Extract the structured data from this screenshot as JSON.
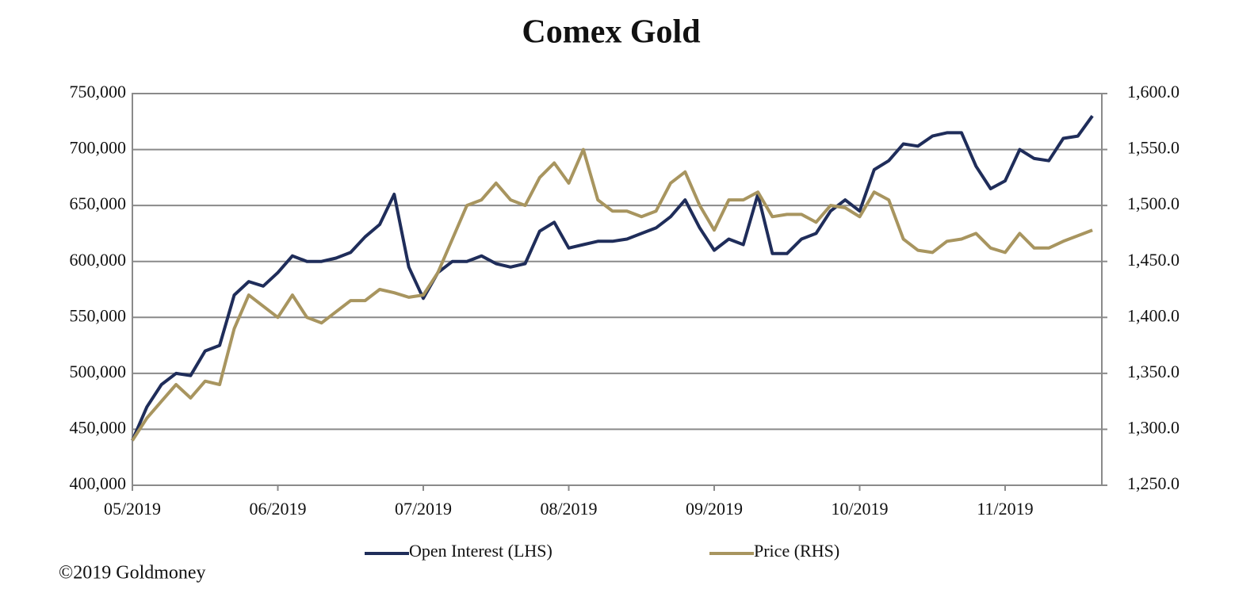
{
  "chart_data": {
    "type": "line",
    "title": "Comex Gold",
    "annotations": [
      "©2019 Goldmoney"
    ],
    "categories": [
      "05/2019",
      null,
      null,
      null,
      null,
      null,
      null,
      null,
      null,
      null,
      "06/2019",
      null,
      null,
      null,
      null,
      null,
      null,
      null,
      null,
      null,
      "07/2019",
      null,
      null,
      null,
      null,
      null,
      null,
      null,
      null,
      null,
      "08/2019",
      null,
      null,
      null,
      null,
      null,
      null,
      null,
      null,
      null,
      "09/2019",
      null,
      null,
      null,
      null,
      null,
      null,
      null,
      null,
      null,
      "10/2019",
      null,
      null,
      null,
      null,
      null,
      null,
      null,
      null,
      null,
      "11/2019",
      null,
      null,
      null,
      null,
      null,
      null
    ],
    "series": [
      {
        "name": "Open Interest (LHS)",
        "color": "#1f2d5a",
        "axis": "y",
        "values": [
          440000,
          470000,
          490000,
          500000,
          498000,
          520000,
          525000,
          570000,
          582000,
          578000,
          590000,
          605000,
          600000,
          600000,
          603000,
          608000,
          622000,
          633000,
          660000,
          595000,
          567000,
          590000,
          600000,
          600000,
          605000,
          598000,
          595000,
          598000,
          627000,
          635000,
          612000,
          615000,
          618000,
          618000,
          620000,
          625000,
          630000,
          640000,
          655000,
          630000,
          610000,
          620000,
          615000,
          660000,
          607000,
          607000,
          620000,
          625000,
          645000,
          655000,
          645000,
          682000,
          690000,
          705000,
          703000,
          712000,
          715000,
          715000,
          685000,
          665000,
          672000,
          700000,
          692000,
          690000,
          710000,
          712000,
          730000
        ]
      },
      {
        "name": "Price (RHS)",
        "color": "#a8955f",
        "axis": "y2",
        "values": [
          1290,
          1310,
          1325,
          1340,
          1328,
          1343,
          1340,
          1390,
          1420,
          1410,
          1400,
          1420,
          1400,
          1395,
          1405,
          1415,
          1415,
          1425,
          1422,
          1418,
          1420,
          1440,
          1470,
          1500,
          1505,
          1520,
          1505,
          1500,
          1525,
          1538,
          1520,
          1550,
          1505,
          1495,
          1495,
          1490,
          1495,
          1520,
          1530,
          1500,
          1478,
          1505,
          1505,
          1512,
          1490,
          1492,
          1492,
          1485,
          1500,
          1498,
          1490,
          1512,
          1505,
          1470,
          1460,
          1458,
          1468,
          1470,
          1475,
          1462,
          1458,
          1475,
          1462,
          1462,
          1468,
          1473,
          1478
        ]
      }
    ],
    "ylim": [
      400000,
      750000
    ],
    "yticks": [
      {
        "value": 400000,
        "label": "400,000"
      },
      {
        "value": 450000,
        "label": "450,000"
      },
      {
        "value": 500000,
        "label": "500,000"
      },
      {
        "value": 550000,
        "label": "550,000"
      },
      {
        "value": 600000,
        "label": "600,000"
      },
      {
        "value": 650000,
        "label": "650,000"
      },
      {
        "value": 700000,
        "label": "700,000"
      },
      {
        "value": 750000,
        "label": "750,000"
      }
    ],
    "y2lim": [
      1250,
      1600
    ],
    "y2ticks": [
      {
        "value": 1250,
        "label": "1,250.0"
      },
      {
        "value": 1300,
        "label": "1,300.0"
      },
      {
        "value": 1350,
        "label": "1,350.0"
      },
      {
        "value": 1400,
        "label": "1,400.0"
      },
      {
        "value": 1450,
        "label": "1,450.0"
      },
      {
        "value": 1500,
        "label": "1,500.0"
      },
      {
        "value": 1550,
        "label": "1,550.0"
      },
      {
        "value": 1600,
        "label": "1,600.0"
      }
    ],
    "grid": true,
    "legend": "bottom"
  }
}
